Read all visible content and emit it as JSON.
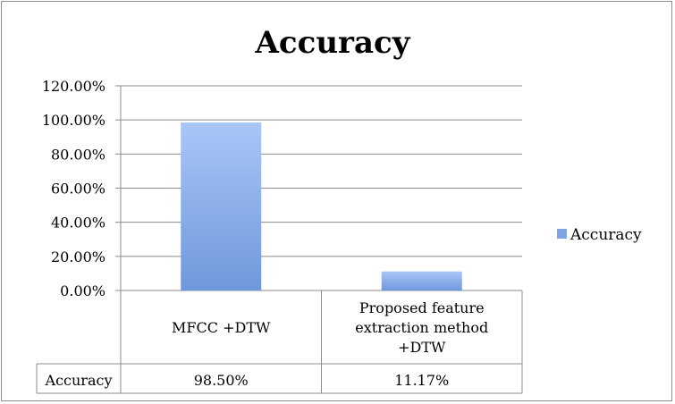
{
  "chart_data": {
    "type": "bar",
    "title": "Accuracy",
    "categories": [
      "MFCC +DTW",
      "Proposed feature extraction method +DTW"
    ],
    "category_lines": [
      [
        "MFCC +DTW"
      ],
      [
        "Proposed feature",
        "extraction method",
        "+DTW"
      ]
    ],
    "series": [
      {
        "name": "Accuracy",
        "values": [
          98.5,
          11.17
        ],
        "value_labels": [
          "98.50%",
          "11.17%"
        ]
      }
    ],
    "ylim": [
      0,
      120
    ],
    "yticks": [
      0,
      20,
      40,
      60,
      80,
      100,
      120
    ],
    "ytick_labels": [
      "0.00%",
      "20.00%",
      "40.00%",
      "60.00%",
      "80.00%",
      "100.00%",
      "120.00%"
    ],
    "grid": true,
    "legend": "right",
    "data_table": true,
    "bar_color_top": "#a9c6f7",
    "bar_color_bottom": "#6f98dc",
    "legend_color": "#7fa4e3"
  }
}
